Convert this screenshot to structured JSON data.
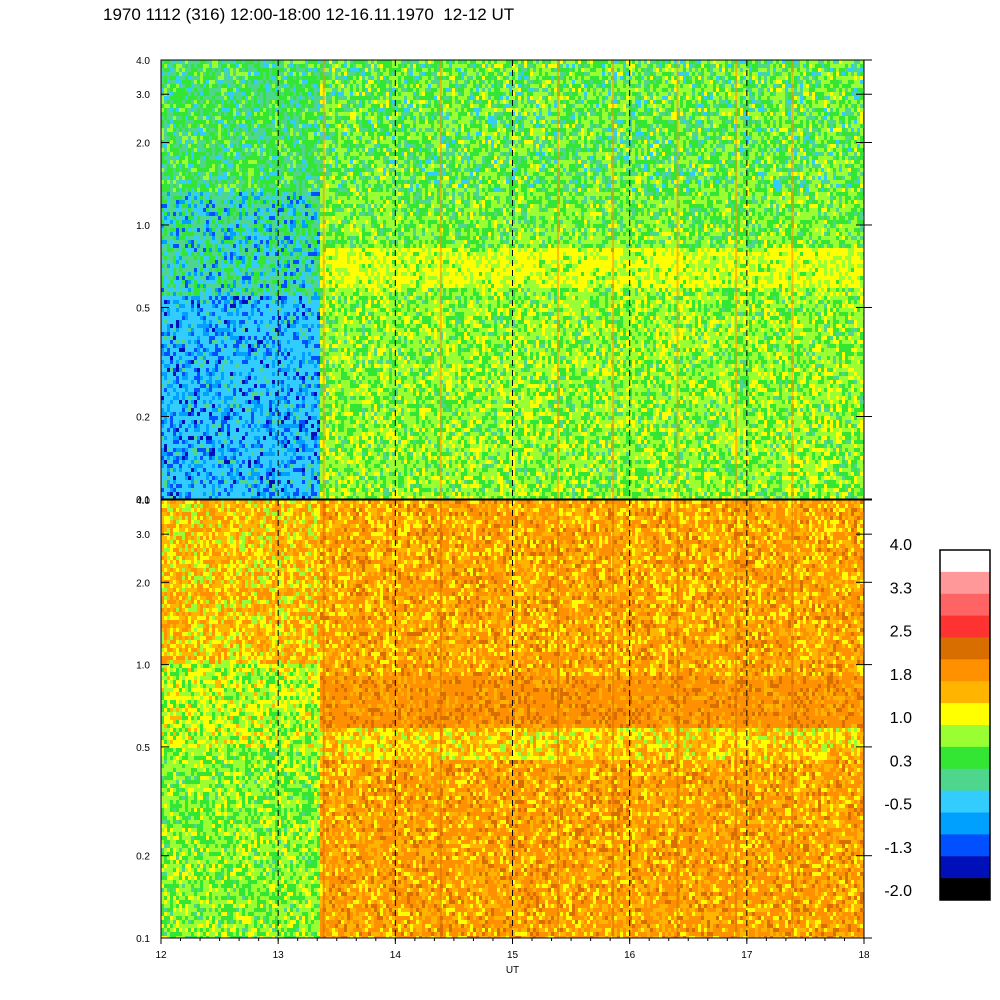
{
  "title": "1970 1112 (316) 12:00-18:00 12-16.11.1970  12-12 UT",
  "chart_data": [
    {
      "type": "heatmap",
      "panel": "top",
      "x_range": [
        12,
        18
      ],
      "x_ticks": [
        "12",
        "13",
        "14",
        "15",
        "16",
        "17",
        "18"
      ],
      "y_scale": "log",
      "y_range": [
        0.1,
        4.0
      ],
      "y_ticks": [
        {
          "value": 0.1,
          "label": "0.1"
        },
        {
          "value": 0.2,
          "label": "0.2"
        },
        {
          "value": 0.5,
          "label": "0.5"
        },
        {
          "value": 1.0,
          "label": "1.0"
        },
        {
          "value": 2.0,
          "label": "2.0"
        },
        {
          "value": 3.0,
          "label": "3.0"
        },
        {
          "value": 4.0,
          "label": "4.0"
        }
      ],
      "dashed_hour_lines": [
        13,
        14,
        15,
        16,
        17
      ],
      "event_onset_ut": 13.35,
      "description": "quiet blue-cyan levels before ~13.35 UT, then green with a yellow band near 0.6-0.8"
    },
    {
      "type": "heatmap",
      "panel": "bottom",
      "x_range": [
        12,
        18
      ],
      "x_ticks": [
        "12",
        "13",
        "14",
        "15",
        "16",
        "17",
        "18"
      ],
      "xlabel": "UT",
      "y_scale": "log",
      "y_range": [
        0.1,
        4.0
      ],
      "y_ticks": [
        {
          "value": 0.1,
          "label": "0.1"
        },
        {
          "value": 0.2,
          "label": "0.2"
        },
        {
          "value": 0.5,
          "label": "0.5"
        },
        {
          "value": 1.0,
          "label": "1.0"
        },
        {
          "value": 2.0,
          "label": "2.0"
        },
        {
          "value": 3.0,
          "label": "3.0"
        },
        {
          "value": 4.0,
          "label": "4.0"
        }
      ],
      "dashed_hour_lines": [
        13,
        14,
        15,
        16,
        17
      ],
      "event_onset_ut": 13.35,
      "description": "green-yellow before ~13.35 UT, then orange, with a dark orange band near 0.6-0.9"
    }
  ],
  "colorbar": {
    "labels": [
      "4.0",
      "3.3",
      "2.5",
      "1.8",
      "1.0",
      "0.3",
      "-0.5",
      "-1.3",
      "-2.0"
    ],
    "colors": [
      "#ffffff",
      "#ff9898",
      "#ff6464",
      "#ff3232",
      "#d86e00",
      "#ff9000",
      "#ffb400",
      "#ffff00",
      "#99ff33",
      "#33e633",
      "#4dd68c",
      "#33ccff",
      "#00a0ff",
      "#0050ff",
      "#0010b8",
      "#000000"
    ]
  }
}
